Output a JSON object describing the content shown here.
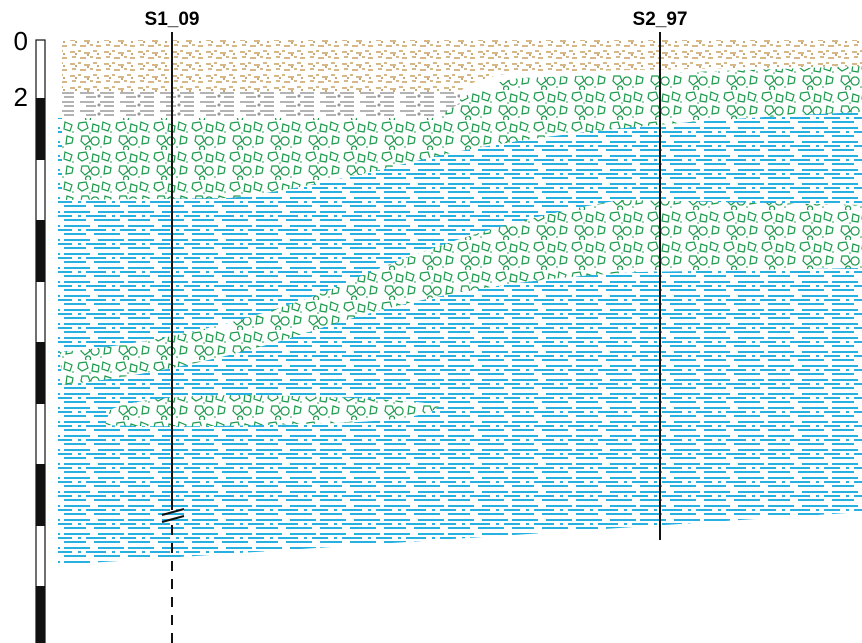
{
  "boreholes": [
    {
      "label": "S1_09"
    },
    {
      "label": "S2_97"
    }
  ],
  "scale": {
    "labels": [
      "0",
      "2"
    ]
  }
}
